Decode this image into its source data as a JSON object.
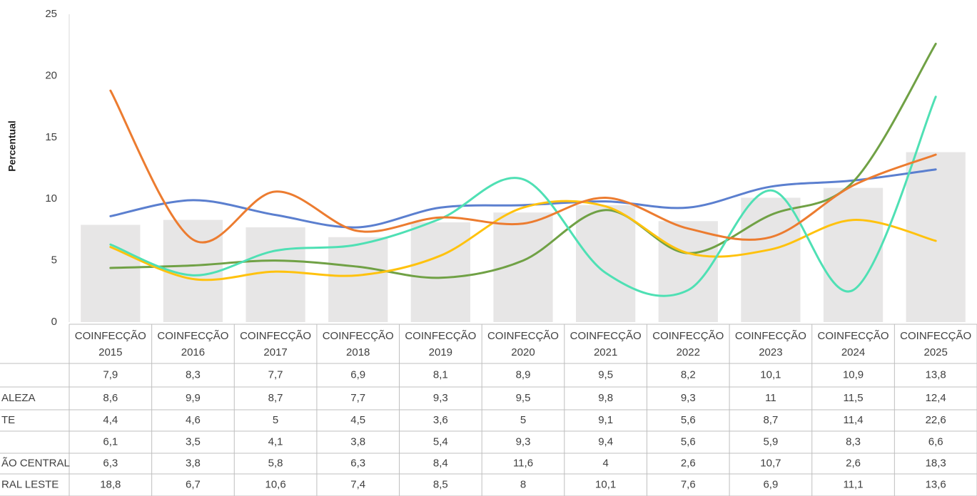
{
  "chart_data": {
    "type": "bar",
    "y_label": "Percentual",
    "categories": [
      "COINFECÇÃO 2015",
      "COINFECÇÃO 2016",
      "COINFECÇÃO 2017",
      "COINFECÇÃO 2018",
      "COINFECÇÃO 2019",
      "COINFECÇÃO 2020",
      "COINFECÇÃO 2021",
      "COINFECÇÃO 2022",
      "COINFECÇÃO 2023",
      "COINFECÇÃO 2024",
      "COINFECÇÃO 2025"
    ],
    "ylim": [
      0,
      25
    ],
    "yticks": [
      0,
      5,
      10,
      15,
      20,
      25
    ],
    "series": [
      {
        "name": null,
        "type": "bar",
        "color": "#e7e6e6",
        "values": [
          7.9,
          8.3,
          7.7,
          6.9,
          8.1,
          8.9,
          9.5,
          8.2,
          10.1,
          10.9,
          13.8
        ],
        "value_labels": [
          "7,9",
          "8,3",
          "7,7",
          "6,9",
          "8,1",
          "8,9",
          "9,5",
          "8,2",
          "10,1",
          "10,9",
          "13,8"
        ]
      },
      {
        "name": "ALEZA",
        "type": "line",
        "color": "#5b7fcf",
        "values": [
          8.6,
          9.9,
          8.7,
          7.7,
          9.3,
          9.5,
          9.8,
          9.3,
          11,
          11.5,
          12.4
        ],
        "value_labels": [
          "8,6",
          "9,9",
          "8,7",
          "7,7",
          "9,3",
          "9,5",
          "9,8",
          "9,3",
          "11",
          "11,5",
          "12,4"
        ]
      },
      {
        "name": "TE",
        "type": "line",
        "color": "#70a145",
        "values": [
          4.4,
          4.6,
          5,
          4.5,
          3.6,
          5,
          9.1,
          5.6,
          8.7,
          11.4,
          22.6
        ],
        "value_labels": [
          "4,4",
          "4,6",
          "5",
          "4,5",
          "3,6",
          "5",
          "9,1",
          "5,6",
          "8,7",
          "11,4",
          "22,6"
        ]
      },
      {
        "name": null,
        "type": "line",
        "color": "#ffc20e",
        "values": [
          6.1,
          3.5,
          4.1,
          3.8,
          5.4,
          9.3,
          9.4,
          5.6,
          5.9,
          8.3,
          6.6
        ],
        "value_labels": [
          "6,1",
          "3,5",
          "4,1",
          "3,8",
          "5,4",
          "9,3",
          "9,4",
          "5,6",
          "5,9",
          "8,3",
          "6,6"
        ]
      },
      {
        "name": "ÃO CENTRAL",
        "type": "line",
        "color": "#4fe0b4",
        "values": [
          6.3,
          3.8,
          5.8,
          6.3,
          8.4,
          11.6,
          4,
          2.6,
          10.7,
          2.6,
          18.3
        ],
        "value_labels": [
          "6,3",
          "3,8",
          "5,8",
          "6,3",
          "8,4",
          "11,6",
          "4",
          "2,6",
          "10,7",
          "2,6",
          "18,3"
        ]
      },
      {
        "name": "RAL LESTE",
        "type": "line",
        "color": "#ec7c30",
        "values": [
          18.8,
          6.7,
          10.6,
          7.4,
          8.5,
          8,
          10.1,
          7.6,
          6.9,
          11.1,
          13.6
        ],
        "value_labels": [
          "18,8",
          "6,7",
          "10,6",
          "7,4",
          "8,5",
          "8",
          "10,1",
          "7,6",
          "6,9",
          "11,1",
          "13,6"
        ]
      }
    ]
  }
}
